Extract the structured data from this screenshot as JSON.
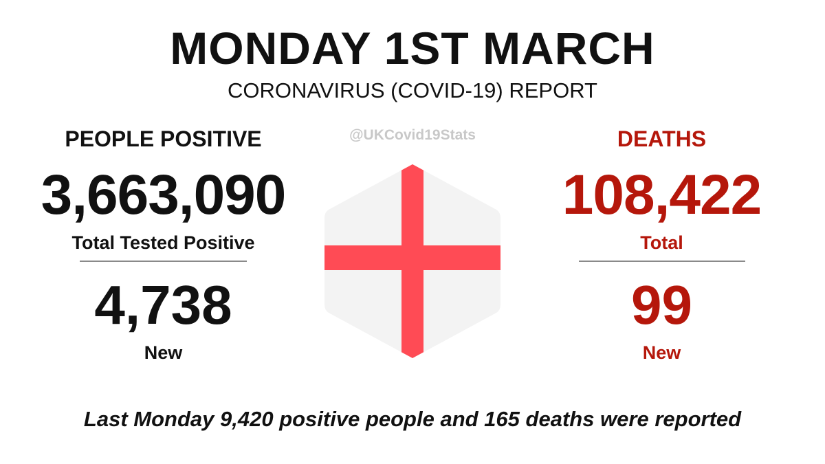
{
  "header": {
    "title": "MONDAY 1ST MARCH",
    "subtitle": "CORONAVIRUS (COVID-19) REPORT",
    "handle": "@UKCovid19Stats"
  },
  "positive": {
    "heading": "PEOPLE POSITIVE",
    "total": "3,663,090",
    "total_label": "Total Tested Positive",
    "new": "4,738",
    "new_label": "New"
  },
  "deaths": {
    "heading": "DEATHS",
    "total": "108,422",
    "total_label": "Total",
    "new": "99",
    "new_label": "New"
  },
  "flag": {
    "icon": "england-flag-hexagon-icon",
    "background_color": "#f3f3f3",
    "cross_color": "#ff4b55"
  },
  "footer": {
    "text": "Last Monday 9,420 positive people and 165 deaths were reported"
  },
  "colors": {
    "text": "#111111",
    "deaths_accent": "#b5170b",
    "handle": "#c8c8c8",
    "divider": "#8a8a8a"
  }
}
